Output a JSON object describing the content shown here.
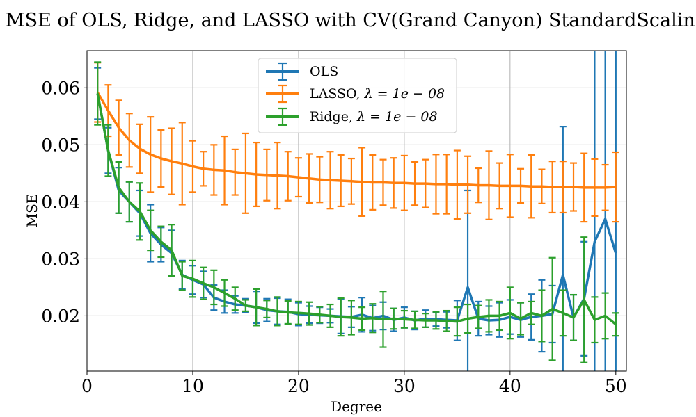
{
  "chart_data": {
    "type": "line",
    "title": "MSE of OLS, Ridge, and LASSO with CV(Grand Canyon) StandardScaling",
    "xlabel": "Degree",
    "ylabel": "MSE",
    "xlim": [
      0,
      51
    ],
    "ylim": [
      0.0103,
      0.0665
    ],
    "xticks": [
      0,
      10,
      20,
      30,
      40,
      50
    ],
    "xtick_labels": [
      "0",
      "10",
      "20",
      "30",
      "40",
      "50"
    ],
    "yticks": [
      0.02,
      0.03,
      0.04,
      0.05,
      0.06
    ],
    "ytick_labels": [
      "0.02",
      "0.03",
      "0.04",
      "0.05",
      "0.06"
    ],
    "grid": true,
    "legend_position": "upper-center",
    "x": [
      1,
      2,
      3,
      4,
      5,
      6,
      7,
      8,
      9,
      10,
      11,
      12,
      13,
      14,
      15,
      16,
      17,
      18,
      19,
      20,
      21,
      22,
      23,
      24,
      25,
      26,
      27,
      28,
      29,
      30,
      31,
      32,
      33,
      34,
      35,
      36,
      37,
      38,
      39,
      40,
      41,
      42,
      43,
      44,
      45,
      46,
      47,
      48,
      49,
      50
    ],
    "series": [
      {
        "name": "OLS",
        "color": "#1f77b4",
        "values": [
          0.059,
          0.049,
          0.042,
          0.04,
          0.038,
          0.0345,
          0.0325,
          0.031,
          0.0272,
          0.0263,
          0.0255,
          0.0232,
          0.0225,
          0.022,
          0.0218,
          0.0215,
          0.021,
          0.0208,
          0.0207,
          0.0203,
          0.0202,
          0.0201,
          0.02,
          0.0199,
          0.0198,
          0.0202,
          0.0196,
          0.02,
          0.0193,
          0.0197,
          0.0192,
          0.0195,
          0.0194,
          0.0193,
          0.0192,
          0.025,
          0.0195,
          0.0192,
          0.0193,
          0.0198,
          0.0193,
          0.0198,
          0.02,
          0.0203,
          0.0272,
          0.0197,
          0.023,
          0.033,
          0.037,
          0.031
        ],
        "errors": [
          0.0045,
          0.004,
          0.004,
          0.0035,
          0.004,
          0.005,
          0.003,
          0.004,
          0.0025,
          0.0025,
          0.0023,
          0.0022,
          0.002,
          0.0015,
          0.0012,
          0.0028,
          0.002,
          0.0023,
          0.0022,
          0.002,
          0.0015,
          0.0014,
          0.0012,
          0.003,
          0.0018,
          0.003,
          0.0022,
          0.0024,
          0.002,
          0.0018,
          0.0016,
          0.0015,
          0.0012,
          0.0014,
          0.0035,
          0.017,
          0.003,
          0.0025,
          0.003,
          0.003,
          0.003,
          0.004,
          0.0063,
          0.005,
          0.026,
          0.004,
          0.01,
          0.06,
          0.07,
          0.065
        ]
      },
      {
        "name": "LASSO, λ = 1e − 08",
        "label_prefix": "LASSO, ",
        "lambda_value": "1e − 08",
        "color": "#ff7f0e",
        "values": [
          0.0592,
          0.056,
          0.053,
          0.0508,
          0.0493,
          0.0483,
          0.0476,
          0.0471,
          0.0467,
          0.0462,
          0.0458,
          0.0456,
          0.0455,
          0.0452,
          0.045,
          0.0448,
          0.0447,
          0.0446,
          0.0445,
          0.0443,
          0.0441,
          0.0439,
          0.0438,
          0.0437,
          0.0436,
          0.0435,
          0.0434,
          0.0434,
          0.0433,
          0.0433,
          0.0432,
          0.0432,
          0.0431,
          0.0431,
          0.043,
          0.043,
          0.0429,
          0.0429,
          0.0428,
          0.0428,
          0.0428,
          0.0427,
          0.0427,
          0.0426,
          0.0426,
          0.0426,
          0.0425,
          0.0425,
          0.0425,
          0.0426
        ],
        "errors": [
          0.0052,
          0.0045,
          0.0048,
          0.0047,
          0.0043,
          0.0066,
          0.005,
          0.0058,
          0.0072,
          0.0045,
          0.003,
          0.0044,
          0.006,
          0.004,
          0.007,
          0.0056,
          0.0045,
          0.0058,
          0.0043,
          0.0034,
          0.0043,
          0.004,
          0.005,
          0.0045,
          0.004,
          0.006,
          0.0048,
          0.004,
          0.0044,
          0.0048,
          0.0038,
          0.0042,
          0.0052,
          0.0052,
          0.006,
          0.005,
          0.003,
          0.006,
          0.004,
          0.0055,
          0.003,
          0.0055,
          0.003,
          0.0045,
          0.0045,
          0.0042,
          0.006,
          0.005,
          0.004,
          0.0061
        ]
      },
      {
        "name": "Ridge, λ = 1e − 08",
        "label_prefix": "Ridge, ",
        "lambda_value": "1e − 08",
        "color": "#2ca02c",
        "values": [
          0.059,
          0.049,
          0.0425,
          0.04,
          0.0383,
          0.035,
          0.033,
          0.0315,
          0.027,
          0.0265,
          0.0257,
          0.025,
          0.024,
          0.023,
          0.0218,
          0.0215,
          0.0212,
          0.0208,
          0.0206,
          0.0205,
          0.0204,
          0.0202,
          0.02,
          0.0198,
          0.0197,
          0.0195,
          0.0196,
          0.0194,
          0.0195,
          0.0194,
          0.0193,
          0.0192,
          0.0192,
          0.0191,
          0.019,
          0.0195,
          0.0198,
          0.02,
          0.02,
          0.0205,
          0.0195,
          0.0205,
          0.02,
          0.0212,
          0.0205,
          0.0197,
          0.0228,
          0.0193,
          0.02,
          0.0185
        ],
        "errors": [
          0.0055,
          0.0045,
          0.0045,
          0.0035,
          0.005,
          0.0035,
          0.0027,
          0.0045,
          0.0025,
          0.0032,
          0.0028,
          0.003,
          0.0023,
          0.002,
          0.001,
          0.0032,
          0.0015,
          0.0025,
          0.002,
          0.002,
          0.002,
          0.0014,
          0.002,
          0.0033,
          0.003,
          0.002,
          0.0025,
          0.0049,
          0.0018,
          0.0015,
          0.0015,
          0.0012,
          0.0015,
          0.0018,
          0.0025,
          0.0025,
          0.002,
          0.0028,
          0.0025,
          0.0045,
          0.0028,
          0.002,
          0.0045,
          0.009,
          0.004,
          0.004,
          0.011,
          0.004,
          0.004,
          0.002
        ]
      }
    ]
  }
}
